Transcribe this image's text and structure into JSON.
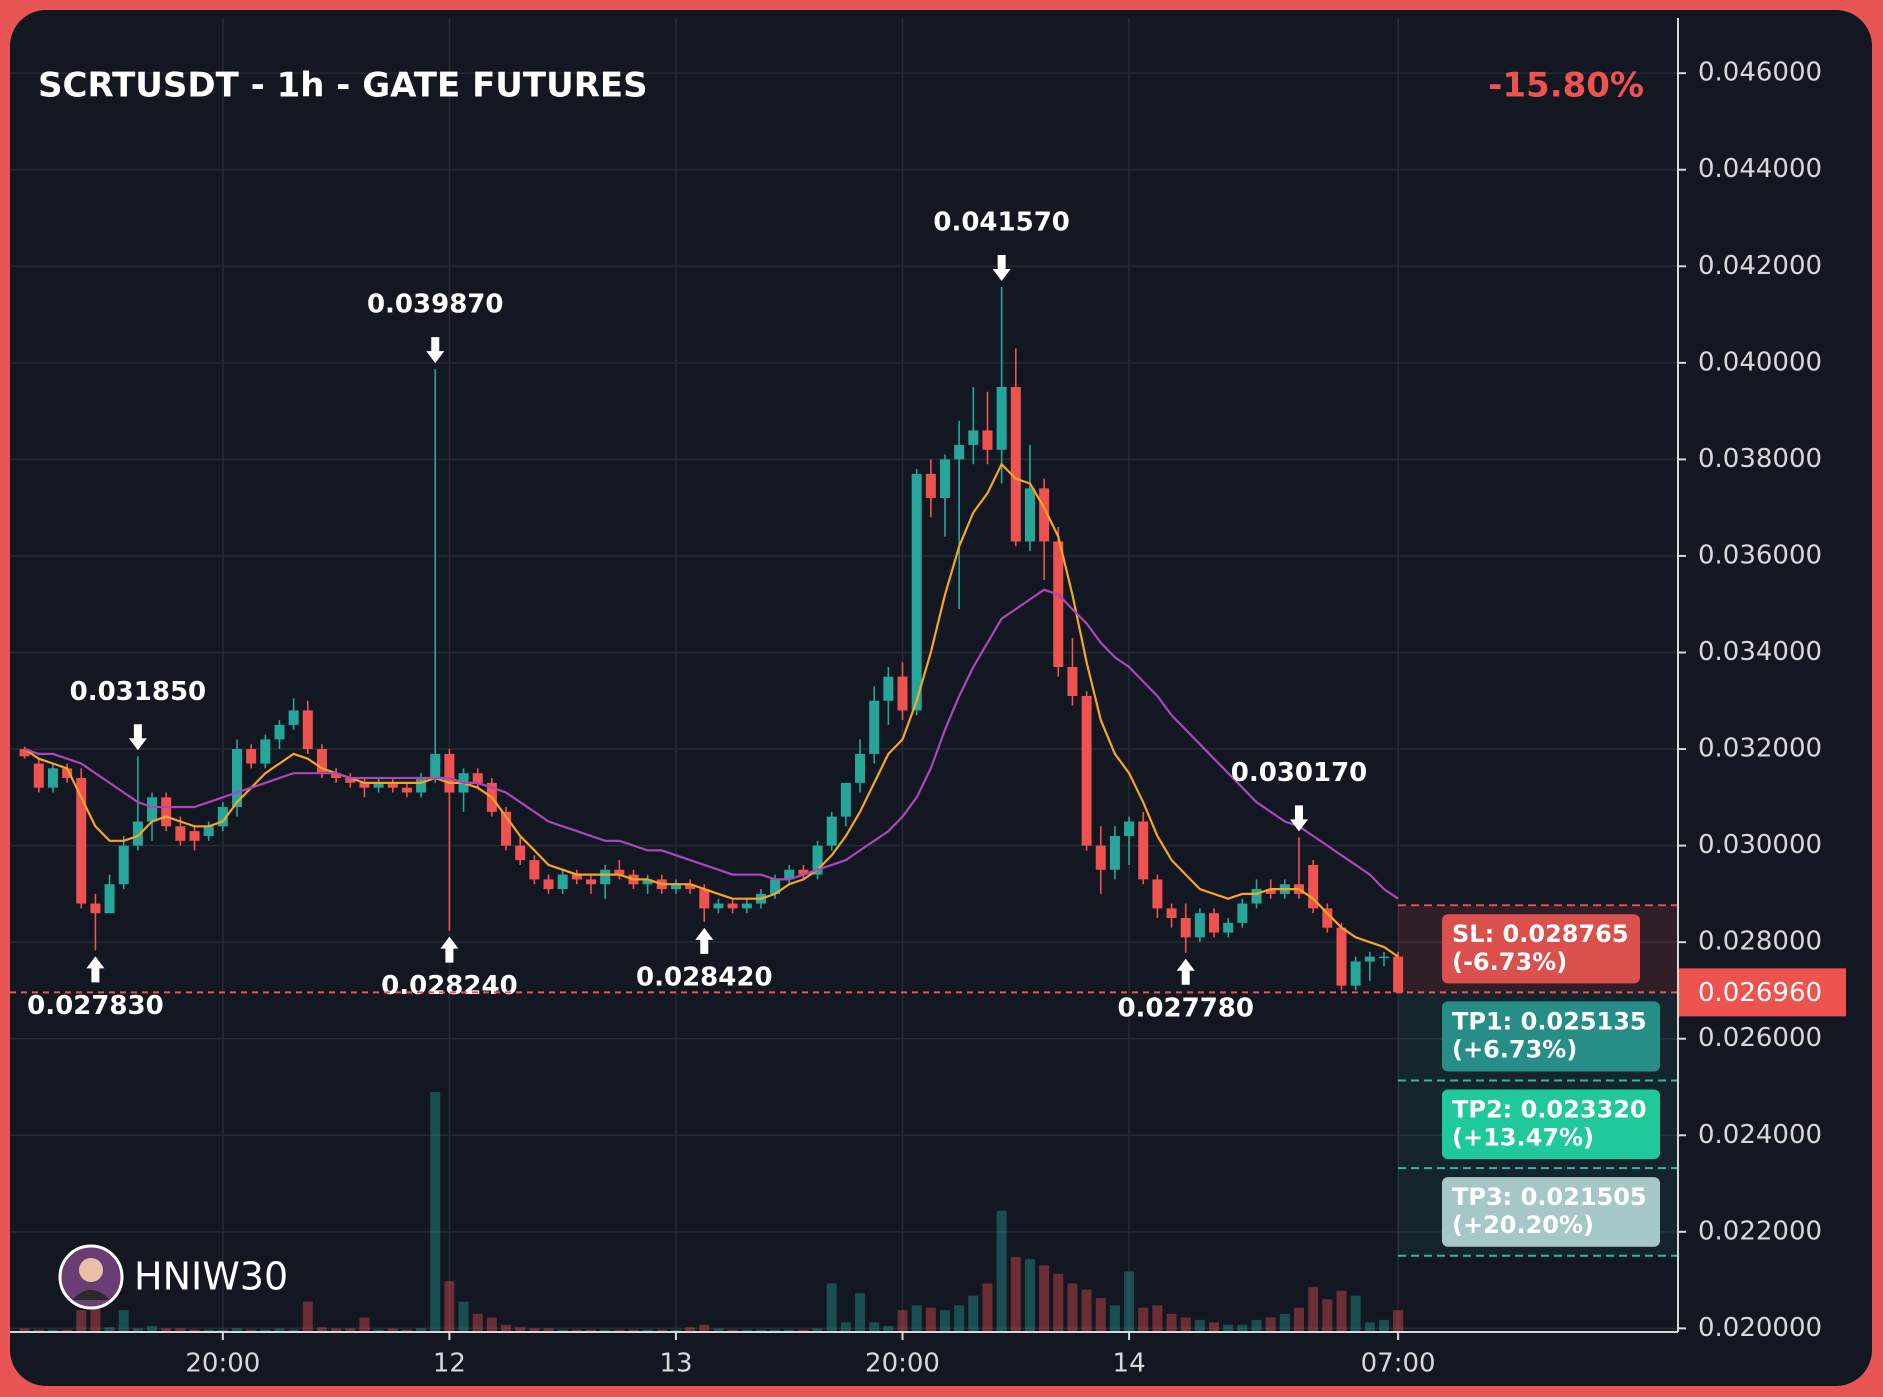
{
  "chart_data": {
    "type": "candlestick",
    "title": "SCRTUSDT - 1h - GATE FUTURES",
    "change_label": "-15.80%",
    "watermark": "HNIW30",
    "up_color": "#26a69a",
    "down_color": "#ef5350",
    "grid": true,
    "ylim": [
      0.019925,
      0.047143
    ],
    "yticks": [
      {
        "value": 0.02,
        "label": "0.020000"
      },
      {
        "value": 0.022,
        "label": "0.022000"
      },
      {
        "value": 0.024,
        "label": "0.024000"
      },
      {
        "value": 0.026,
        "label": "0.026000"
      },
      {
        "value": 0.028,
        "label": "0.028000"
      },
      {
        "value": 0.03,
        "label": "0.030000"
      },
      {
        "value": 0.032,
        "label": "0.032000"
      },
      {
        "value": 0.034,
        "label": "0.034000"
      },
      {
        "value": 0.036,
        "label": "0.036000"
      },
      {
        "value": 0.038,
        "label": "0.038000"
      },
      {
        "value": 0.04,
        "label": "0.040000"
      },
      {
        "value": 0.042,
        "label": "0.042000"
      },
      {
        "value": 0.044,
        "label": "0.044000"
      },
      {
        "value": 0.046,
        "label": "0.046000"
      }
    ],
    "xticks": [
      {
        "value": 14,
        "label": "20:00"
      },
      {
        "value": 30,
        "label": "12"
      },
      {
        "value": 46,
        "label": "13"
      },
      {
        "value": 62,
        "label": "20:00"
      },
      {
        "value": 78,
        "label": "14"
      },
      {
        "value": 97,
        "label": "07:00"
      }
    ],
    "candles": [
      [
        0.032,
        0.03205,
        0.0318,
        0.03185
      ],
      [
        0.0317,
        0.0318,
        0.0311,
        0.0312
      ],
      [
        0.0312,
        0.0317,
        0.0311,
        0.0316
      ],
      [
        0.0316,
        0.0317,
        0.0313,
        0.0314
      ],
      [
        0.0314,
        0.0316,
        0.0287,
        0.0288
      ],
      [
        0.0288,
        0.029,
        0.02783,
        0.0286
      ],
      [
        0.0286,
        0.0294,
        0.0286,
        0.0292
      ],
      [
        0.0292,
        0.0302,
        0.0291,
        0.03
      ],
      [
        0.03,
        0.03185,
        0.0299,
        0.0305
      ],
      [
        0.0305,
        0.0311,
        0.0301,
        0.031
      ],
      [
        0.031,
        0.0311,
        0.0303,
        0.0304
      ],
      [
        0.0304,
        0.0306,
        0.03,
        0.0301
      ],
      [
        0.0303,
        0.0304,
        0.0299,
        0.0301
      ],
      [
        0.0302,
        0.0305,
        0.0301,
        0.0304
      ],
      [
        0.0304,
        0.0309,
        0.0303,
        0.0308
      ],
      [
        0.0308,
        0.0322,
        0.0306,
        0.032
      ],
      [
        0.032,
        0.0321,
        0.0316,
        0.0317
      ],
      [
        0.0317,
        0.0323,
        0.0316,
        0.0322
      ],
      [
        0.0322,
        0.0326,
        0.032,
        0.0325
      ],
      [
        0.0325,
        0.03305,
        0.0324,
        0.0328
      ],
      [
        0.0328,
        0.033,
        0.0319,
        0.032
      ],
      [
        0.032,
        0.0321,
        0.0314,
        0.0315
      ],
      [
        0.0315,
        0.0316,
        0.0313,
        0.0314
      ],
      [
        0.0314,
        0.0315,
        0.0312,
        0.0313
      ],
      [
        0.0313,
        0.0314,
        0.031,
        0.0312
      ],
      [
        0.0312,
        0.0314,
        0.0311,
        0.0313
      ],
      [
        0.0313,
        0.0314,
        0.0311,
        0.0312
      ],
      [
        0.0312,
        0.0313,
        0.031,
        0.0311
      ],
      [
        0.0311,
        0.0315,
        0.031,
        0.0314
      ],
      [
        0.0314,
        0.03987,
        0.0313,
        0.0319
      ],
      [
        0.0319,
        0.032,
        0.02824,
        0.0311
      ],
      [
        0.0311,
        0.0316,
        0.0307,
        0.0315
      ],
      [
        0.0315,
        0.0316,
        0.0312,
        0.0313
      ],
      [
        0.0313,
        0.0314,
        0.0306,
        0.0307
      ],
      [
        0.0307,
        0.0308,
        0.0299,
        0.03
      ],
      [
        0.03,
        0.0302,
        0.0296,
        0.0297
      ],
      [
        0.0297,
        0.0298,
        0.0292,
        0.0293
      ],
      [
        0.0293,
        0.0294,
        0.029,
        0.0291
      ],
      [
        0.0291,
        0.0295,
        0.029,
        0.0294
      ],
      [
        0.0294,
        0.0295,
        0.0292,
        0.0293
      ],
      [
        0.0293,
        0.0294,
        0.029,
        0.0292
      ],
      [
        0.0292,
        0.0296,
        0.0289,
        0.0295
      ],
      [
        0.0295,
        0.0297,
        0.0293,
        0.0294
      ],
      [
        0.0294,
        0.0295,
        0.0291,
        0.0292
      ],
      [
        0.0292,
        0.0294,
        0.029,
        0.0293
      ],
      [
        0.0293,
        0.0294,
        0.029,
        0.0291
      ],
      [
        0.0291,
        0.0293,
        0.029,
        0.0292
      ],
      [
        0.0292,
        0.0293,
        0.029,
        0.0291
      ],
      [
        0.0291,
        0.0292,
        0.02842,
        0.0287
      ],
      [
        0.0287,
        0.0289,
        0.0286,
        0.0288
      ],
      [
        0.0288,
        0.0289,
        0.0286,
        0.0287
      ],
      [
        0.0287,
        0.0289,
        0.0286,
        0.0288
      ],
      [
        0.0288,
        0.0291,
        0.0287,
        0.029
      ],
      [
        0.029,
        0.0294,
        0.0289,
        0.0293
      ],
      [
        0.0293,
        0.0296,
        0.0292,
        0.0295
      ],
      [
        0.0295,
        0.0296,
        0.0293,
        0.0294
      ],
      [
        0.0294,
        0.0301,
        0.0293,
        0.03
      ],
      [
        0.03,
        0.0307,
        0.0299,
        0.0306
      ],
      [
        0.0306,
        0.0313,
        0.0304,
        0.0313
      ],
      [
        0.0313,
        0.0322,
        0.0311,
        0.0319
      ],
      [
        0.0319,
        0.0333,
        0.0317,
        0.033
      ],
      [
        0.033,
        0.0337,
        0.0325,
        0.0335
      ],
      [
        0.0335,
        0.0338,
        0.0326,
        0.0328
      ],
      [
        0.0328,
        0.0378,
        0.0327,
        0.0377
      ],
      [
        0.0377,
        0.038,
        0.0368,
        0.0372
      ],
      [
        0.0372,
        0.0381,
        0.0364,
        0.038
      ],
      [
        0.038,
        0.0388,
        0.0349,
        0.0383
      ],
      [
        0.0383,
        0.0395,
        0.0379,
        0.0386
      ],
      [
        0.0386,
        0.0394,
        0.0379,
        0.0382
      ],
      [
        0.0382,
        0.04157,
        0.0375,
        0.0395
      ],
      [
        0.0395,
        0.0403,
        0.0362,
        0.0363
      ],
      [
        0.0363,
        0.0383,
        0.0361,
        0.0374
      ],
      [
        0.0374,
        0.0376,
        0.0355,
        0.0363
      ],
      [
        0.0363,
        0.0366,
        0.0335,
        0.0337
      ],
      [
        0.0337,
        0.0343,
        0.0329,
        0.0331
      ],
      [
        0.0331,
        0.0332,
        0.0299,
        0.03
      ],
      [
        0.03,
        0.0304,
        0.029,
        0.0295
      ],
      [
        0.0295,
        0.0304,
        0.0293,
        0.0302
      ],
      [
        0.0302,
        0.0306,
        0.0296,
        0.0305
      ],
      [
        0.0305,
        0.0307,
        0.0292,
        0.0293
      ],
      [
        0.0293,
        0.0294,
        0.0285,
        0.0287
      ],
      [
        0.0287,
        0.0288,
        0.0283,
        0.0285
      ],
      [
        0.0285,
        0.0288,
        0.02778,
        0.0281
      ],
      [
        0.0281,
        0.0287,
        0.028,
        0.0286
      ],
      [
        0.0286,
        0.0287,
        0.0281,
        0.0282
      ],
      [
        0.0282,
        0.0285,
        0.0281,
        0.0284
      ],
      [
        0.0284,
        0.0289,
        0.0283,
        0.0288
      ],
      [
        0.0288,
        0.0293,
        0.0287,
        0.0291
      ],
      [
        0.0291,
        0.0293,
        0.0289,
        0.029
      ],
      [
        0.029,
        0.0293,
        0.0289,
        0.0292
      ],
      [
        0.0292,
        0.03017,
        0.0289,
        0.029
      ],
      [
        0.0296,
        0.0297,
        0.0286,
        0.0287
      ],
      [
        0.0287,
        0.0288,
        0.0282,
        0.0283
      ],
      [
        0.0283,
        0.0284,
        0.027,
        0.0271
      ],
      [
        0.0271,
        0.0277,
        0.027,
        0.0276
      ],
      [
        0.0276,
        0.0278,
        0.0272,
        0.0277
      ],
      [
        0.0277,
        0.0278,
        0.0275,
        0.0277
      ],
      [
        0.0277,
        0.0278,
        0.02696,
        0.02696
      ]
    ],
    "volumes": [
      3,
      2,
      2,
      2,
      18,
      20,
      4,
      18,
      3,
      5,
      3,
      3,
      2,
      2,
      2,
      3,
      2,
      2,
      3,
      2,
      25,
      4,
      3,
      3,
      12,
      2,
      3,
      2,
      3,
      198,
      42,
      25,
      15,
      12,
      6,
      4,
      3,
      3,
      2,
      2,
      2,
      2,
      2,
      2,
      2,
      2,
      2,
      4,
      6,
      3,
      2,
      2,
      2,
      2,
      2,
      2,
      3,
      40,
      8,
      32,
      8,
      5,
      18,
      22,
      20,
      18,
      22,
      30,
      40,
      100,
      62,
      60,
      55,
      48,
      40,
      35,
      28,
      22,
      50,
      20,
      22,
      15,
      12,
      10,
      8,
      6,
      6,
      10,
      12,
      15,
      20,
      37,
      27,
      34,
      30,
      8,
      10,
      18
    ],
    "moving_averages": [
      {
        "color": "#f5a623",
        "values": [
          0.032,
          0.0318,
          0.0317,
          0.0316,
          0.031,
          0.0304,
          0.0301,
          0.0301,
          0.0302,
          0.0305,
          0.0306,
          0.0305,
          0.0304,
          0.0304,
          0.0305,
          0.0309,
          0.0312,
          0.0315,
          0.0317,
          0.0319,
          0.0318,
          0.0316,
          0.0315,
          0.0314,
          0.0313,
          0.0313,
          0.0313,
          0.0313,
          0.0313,
          0.0314,
          0.0313,
          0.0313,
          0.0312,
          0.031,
          0.0306,
          0.0302,
          0.0299,
          0.0296,
          0.0295,
          0.0294,
          0.0294,
          0.0294,
          0.0294,
          0.0293,
          0.0293,
          0.0292,
          0.0292,
          0.0292,
          0.0291,
          0.029,
          0.0289,
          0.0289,
          0.0289,
          0.029,
          0.0292,
          0.0293,
          0.0295,
          0.0298,
          0.0302,
          0.0307,
          0.0313,
          0.0319,
          0.0322,
          0.033,
          0.034,
          0.0352,
          0.0362,
          0.0369,
          0.0373,
          0.0379,
          0.0376,
          0.0375,
          0.037,
          0.0364,
          0.0352,
          0.0338,
          0.0326,
          0.0319,
          0.0315,
          0.0309,
          0.0302,
          0.0297,
          0.0294,
          0.0291,
          0.029,
          0.0289,
          0.029,
          0.029,
          0.0291,
          0.0291,
          0.0291,
          0.0289,
          0.0286,
          0.0283,
          0.0281,
          0.028,
          0.0279,
          0.0277
        ]
      },
      {
        "color": "#ab47bc",
        "values": [
          0.032,
          0.0319,
          0.0319,
          0.0318,
          0.0317,
          0.0315,
          0.0313,
          0.0311,
          0.0309,
          0.0308,
          0.0308,
          0.0308,
          0.0308,
          0.0309,
          0.031,
          0.0311,
          0.0312,
          0.0313,
          0.0314,
          0.0315,
          0.0315,
          0.0315,
          0.0315,
          0.0314,
          0.0314,
          0.0314,
          0.0314,
          0.0314,
          0.0314,
          0.0314,
          0.0314,
          0.0313,
          0.0313,
          0.0312,
          0.0311,
          0.0309,
          0.0307,
          0.0305,
          0.0304,
          0.0303,
          0.0302,
          0.0301,
          0.0301,
          0.03,
          0.0299,
          0.0299,
          0.0298,
          0.0297,
          0.0296,
          0.0295,
          0.0294,
          0.0294,
          0.0294,
          0.0293,
          0.0293,
          0.0294,
          0.0295,
          0.0296,
          0.0297,
          0.0299,
          0.0301,
          0.0303,
          0.0306,
          0.031,
          0.0316,
          0.0324,
          0.0331,
          0.0337,
          0.0342,
          0.0347,
          0.0349,
          0.0351,
          0.0353,
          0.0352,
          0.0349,
          0.0346,
          0.0342,
          0.0339,
          0.0337,
          0.0334,
          0.0331,
          0.0327,
          0.0324,
          0.0321,
          0.0318,
          0.0315,
          0.0312,
          0.0309,
          0.0307,
          0.0305,
          0.0304,
          0.0302,
          0.03,
          0.0298,
          0.0296,
          0.0294,
          0.0291,
          0.0289
        ]
      }
    ],
    "annotations": [
      {
        "x": 5,
        "value": 0.02783,
        "label": "0.027830",
        "arrow": "up"
      },
      {
        "x": 8,
        "value": 0.03185,
        "label": "0.031850",
        "arrow": "down"
      },
      {
        "x": 29,
        "value": 0.03987,
        "label": "0.039870",
        "arrow": "down"
      },
      {
        "x": 30,
        "value": 0.02824,
        "label": "0.028240",
        "arrow": "up"
      },
      {
        "x": 48,
        "value": 0.02842,
        "label": "0.028420",
        "arrow": "up"
      },
      {
        "x": 69,
        "value": 0.04157,
        "label": "0.041570",
        "arrow": "down"
      },
      {
        "x": 82,
        "value": 0.02778,
        "label": "0.027780",
        "arrow": "up"
      },
      {
        "x": 90,
        "value": 0.03017,
        "label": "0.030170",
        "arrow": "down"
      }
    ],
    "last_price": {
      "value": 0.02696,
      "label": "0.026960",
      "color": "#ef5350"
    },
    "levels": [
      {
        "value": 0.028765,
        "label": "SL: 0.028765",
        "change": "(-6.73%)",
        "color": "#d9504c"
      },
      {
        "value": 0.025135,
        "label": "TP1: 0.025135",
        "change": "(+6.73%)",
        "color": "#268e86"
      },
      {
        "value": 0.02332,
        "label": "TP2: 0.023320",
        "change": "(+13.47%)",
        "color": "#20c99b"
      },
      {
        "value": 0.021505,
        "label": "TP3: 0.021505",
        "change": "(+20.20%)",
        "color": "#a6c7c7"
      }
    ]
  }
}
